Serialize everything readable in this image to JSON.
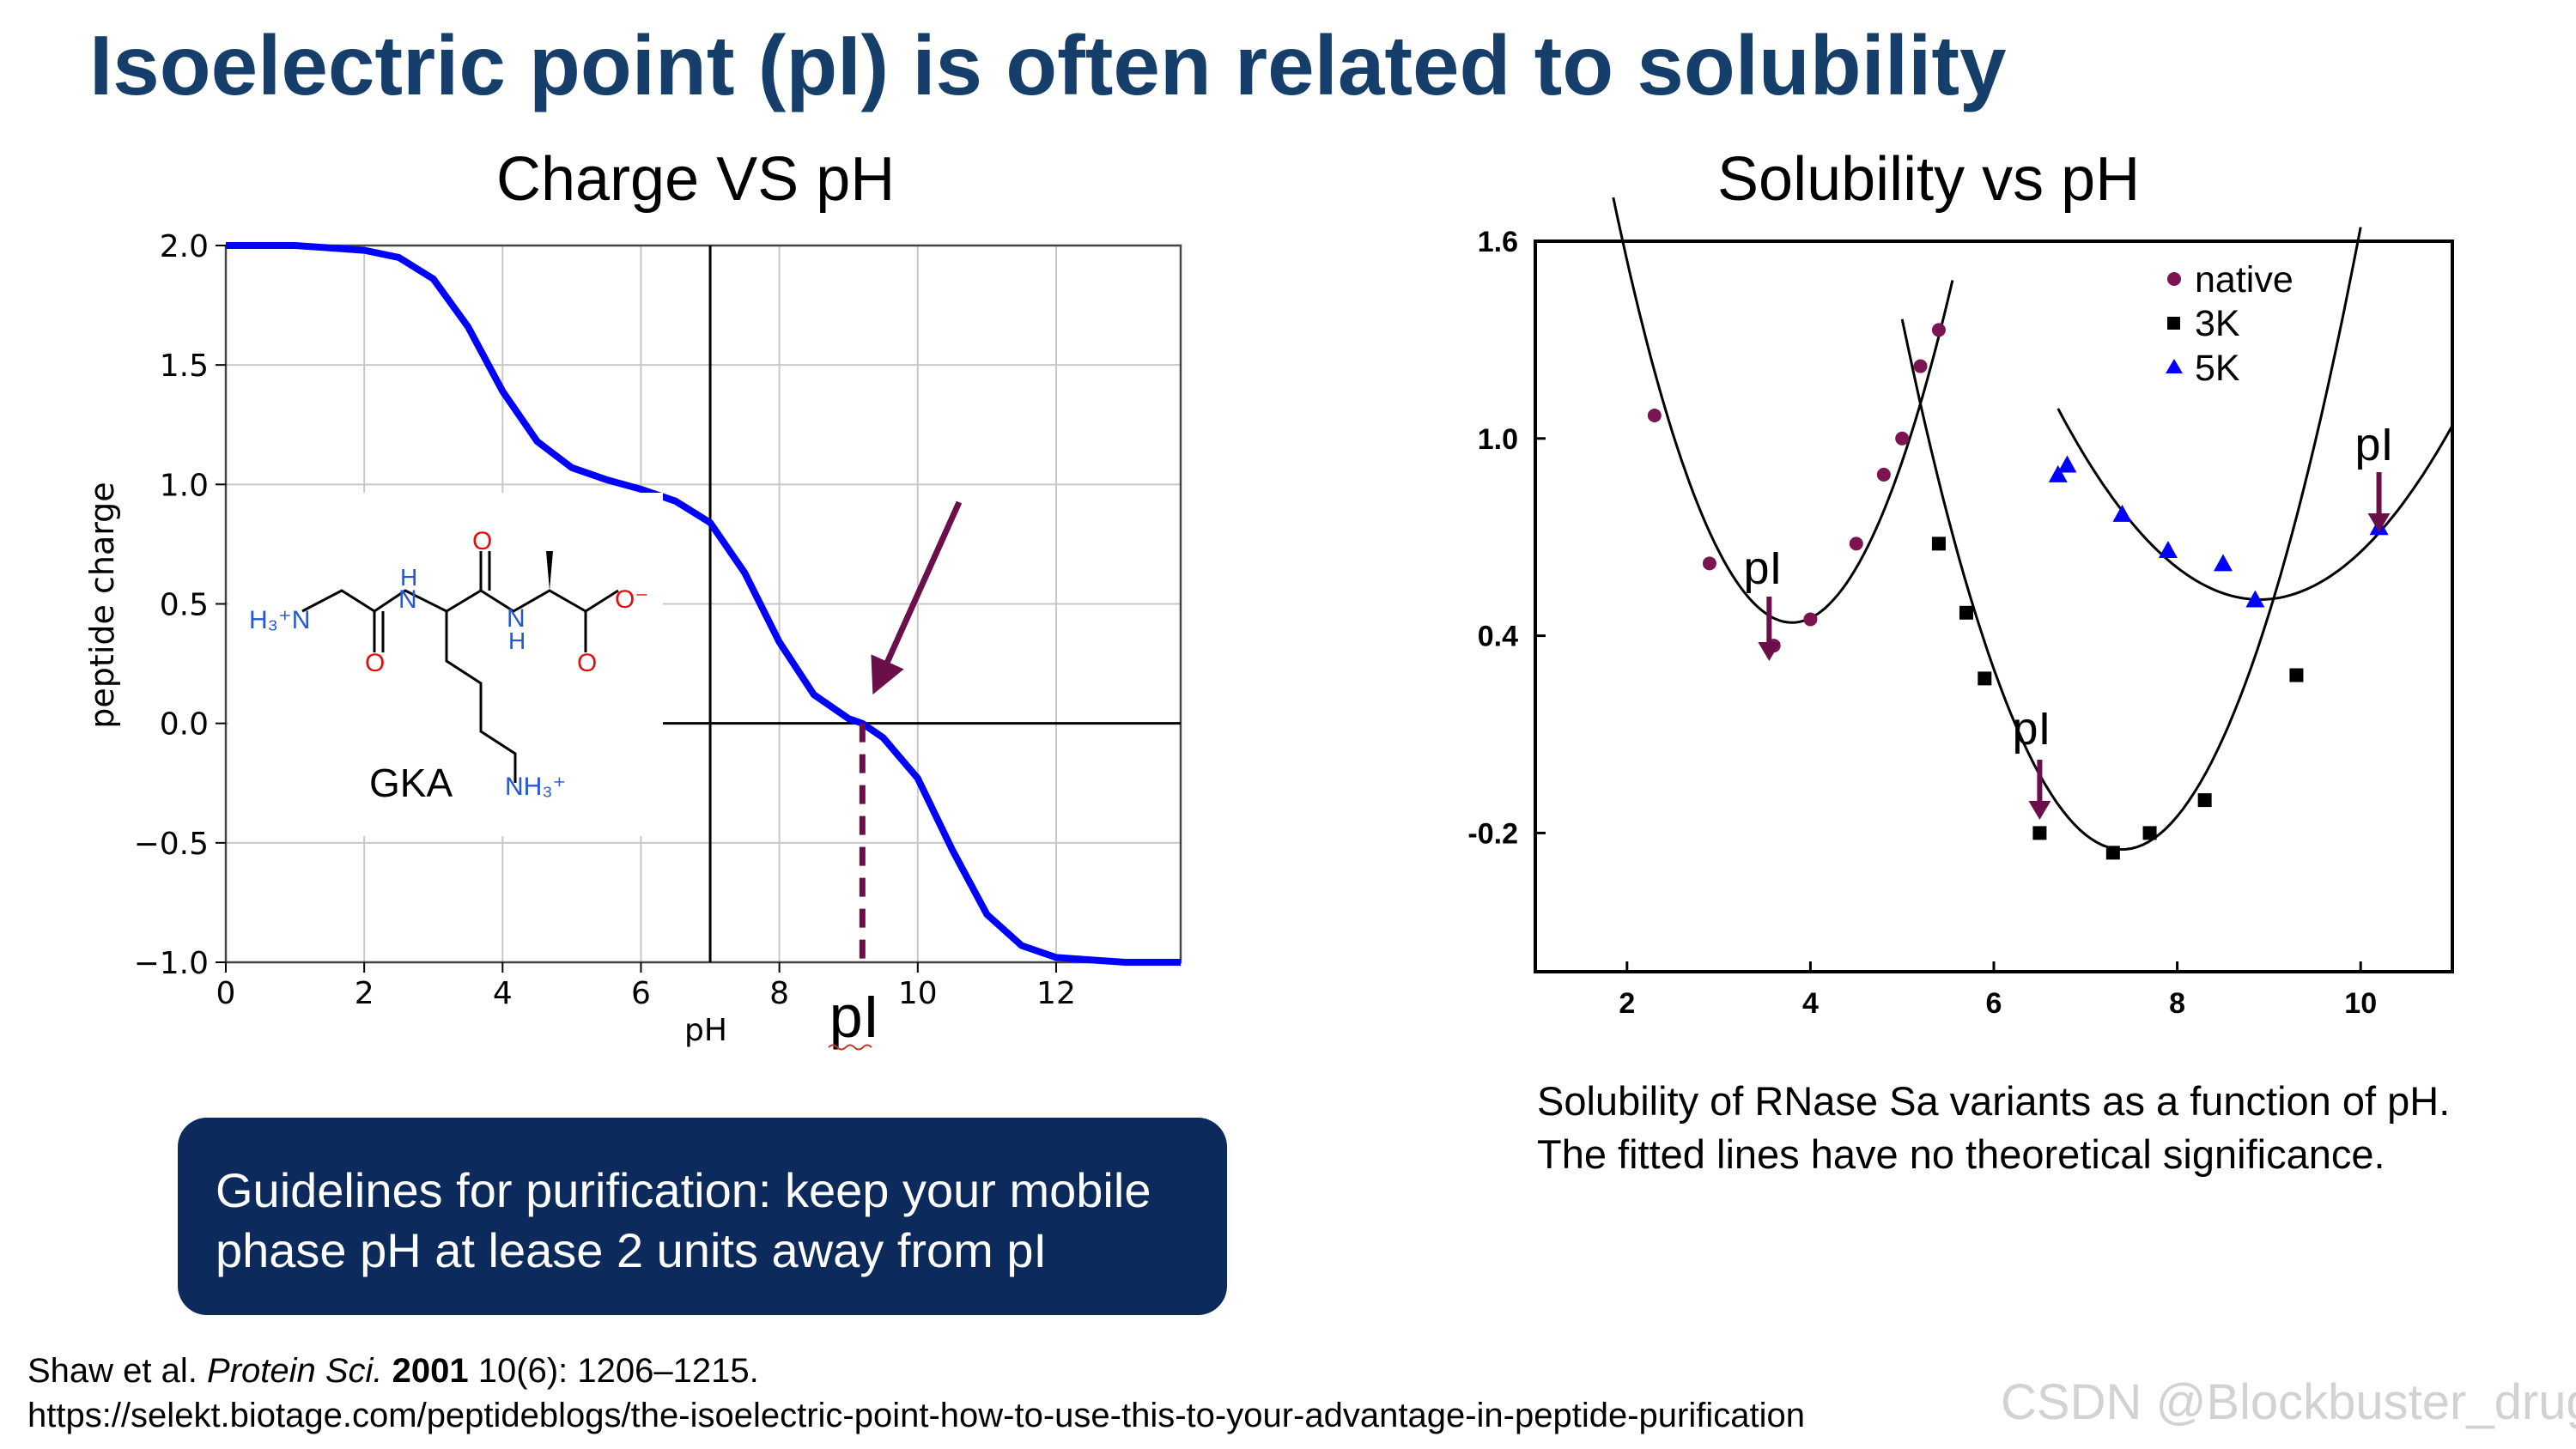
{
  "slide": {
    "title": "Isoelectric point (pI) is often related to solubility",
    "guideline": "Guidelines for purification: keep your mobile phase pH at lease 2 units away from pI",
    "reference_line1_author": "Shaw et al. ",
    "reference_line1_journal": "Protein Sci.",
    "reference_line1_year": " 2001",
    "reference_line1_rest": " 10(6): 1206–1215.",
    "reference_line2": "https://selekt.biotage.com/peptideblogs/the-isoelectric-point-how-to-use-this-to-your-advantage-in-peptide-purification",
    "watermark": "CSDN @Blockbuster_drug",
    "colors": {
      "title": "#153f6a",
      "curve": "#0000ff",
      "arrow": "#6b0f4a",
      "box": "#0c2a5b",
      "native": "#7b1450",
      "k3": "#000000",
      "k5": "#0000ff"
    }
  },
  "chart_data": [
    {
      "type": "line",
      "title": "Charge VS pH",
      "xlabel": "pH",
      "ylabel": "peptide charge",
      "xlim": [
        0,
        13.8
      ],
      "ylim": [
        -1.0,
        2.0
      ],
      "x_ticks": [
        0,
        2,
        4,
        6,
        8,
        10,
        12
      ],
      "y_ticks": [
        2.0,
        1.5,
        1.0,
        0.5,
        0.0,
        -0.5,
        -1.0
      ],
      "y_tick_labels": [
        "2.0",
        "1.5",
        "1.0",
        "0.5",
        "0.0",
        "−0.5",
        "−1.0"
      ],
      "grid": true,
      "series": [
        {
          "x": [
            0,
            0.5,
            1,
            1.5,
            2,
            2.5,
            3,
            3.5,
            4,
            4.5,
            5,
            5.5,
            6,
            6.5,
            7,
            7.5,
            8,
            8.5,
            9,
            9.2,
            9.5,
            10,
            10.5,
            11,
            11.5,
            12,
            12.5,
            13,
            13.8
          ],
          "y": [
            2.0,
            2.0,
            2.0,
            1.99,
            1.98,
            1.95,
            1.86,
            1.66,
            1.39,
            1.18,
            1.07,
            1.02,
            0.98,
            0.93,
            0.84,
            0.63,
            0.34,
            0.12,
            0.02,
            0.0,
            -0.06,
            -0.23,
            -0.53,
            -0.8,
            -0.93,
            -0.98,
            -0.99,
            -1.0,
            -1.0
          ]
        }
      ],
      "reference_lines": {
        "vertical_x": 7,
        "horizontal_y": 0
      },
      "annotations": {
        "pI_label": "pI",
        "pI_x": 9.2,
        "peptide_label": "GKA"
      }
    },
    {
      "type": "scatter",
      "title": "Solubility vs pH",
      "xlim": [
        1.0,
        11.0
      ],
      "ylim": [
        -0.4,
        1.6
      ],
      "x_ticks": [
        2,
        4,
        6,
        8,
        10
      ],
      "y_ticks": [
        1.6,
        1.0,
        0.4,
        -0.2
      ],
      "y_tick_labels": [
        "1.6",
        "1.0",
        "0.4",
        "-0.2"
      ],
      "grid": false,
      "legend_position": "top-right",
      "series": [
        {
          "name": "native",
          "marker": "circle",
          "points": [
            [
              2.3,
              1.07
            ],
            [
              2.9,
              0.62
            ],
            [
              3.6,
              0.37
            ],
            [
              4.0,
              0.45
            ],
            [
              4.5,
              0.68
            ],
            [
              4.8,
              0.89
            ],
            [
              5.0,
              1.0
            ],
            [
              5.2,
              1.22
            ],
            [
              5.4,
              1.33
            ]
          ],
          "fit": {
            "a": 0.34,
            "h": 3.8,
            "k": 0.44,
            "x_range": [
              1.85,
              5.55
            ]
          }
        },
        {
          "name": "3K",
          "marker": "square",
          "points": [
            [
              5.4,
              0.68
            ],
            [
              5.7,
              0.47
            ],
            [
              5.9,
              0.27
            ],
            [
              6.5,
              -0.2
            ],
            [
              7.3,
              -0.26
            ],
            [
              7.7,
              -0.2
            ],
            [
              8.3,
              -0.1
            ],
            [
              9.3,
              0.28
            ]
          ],
          "fit": {
            "a": 0.28,
            "h": 7.4,
            "k": -0.25,
            "x_range": [
              5.0,
              10.0
            ]
          }
        },
        {
          "name": "5K",
          "marker": "triangle",
          "points": [
            [
              6.7,
              0.89
            ],
            [
              6.8,
              0.92
            ],
            [
              7.4,
              0.77
            ],
            [
              7.9,
              0.66
            ],
            [
              8.5,
              0.62
            ],
            [
              8.85,
              0.51
            ],
            [
              10.2,
              0.73
            ]
          ],
          "fit": {
            "a": 0.12,
            "h": 8.9,
            "k": 0.51,
            "x_range": [
              6.7,
              11.0
            ]
          }
        }
      ],
      "annotations": {
        "pI_native_x": 3.55,
        "pI_3K_x": 6.5,
        "pI_5K_x": 10.2,
        "label": "pI"
      },
      "caption": "Solubility of RNase Sa variants as a function of pH. The fitted lines have no theoretical significance."
    }
  ]
}
